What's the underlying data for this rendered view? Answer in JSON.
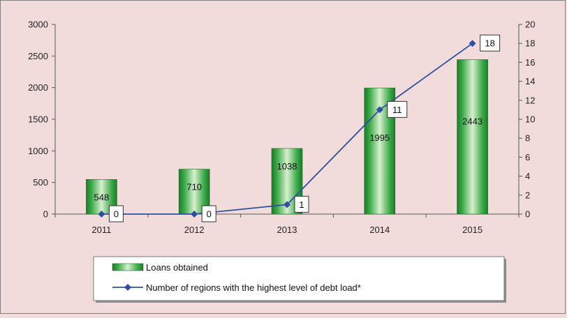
{
  "chart_data": {
    "type": "bar",
    "categories": [
      "2011",
      "2012",
      "2013",
      "2014",
      "2015"
    ],
    "series": [
      {
        "name": "Loans obtained",
        "type": "bar",
        "axis": "left",
        "values": [
          548,
          710,
          1038,
          1995,
          2443
        ],
        "color": "#2e9a3a"
      },
      {
        "name": "Number of regions with the highest level of debt load*",
        "type": "line",
        "axis": "right",
        "values": [
          0,
          0,
          1,
          11,
          18
        ],
        "color": "#2f4f9f"
      }
    ],
    "y_left": {
      "min": 0,
      "max": 3000,
      "step": 500
    },
    "y_right": {
      "min": 0,
      "max": 20,
      "step": 2
    },
    "grid": false,
    "legend_position": "bottom-center"
  }
}
